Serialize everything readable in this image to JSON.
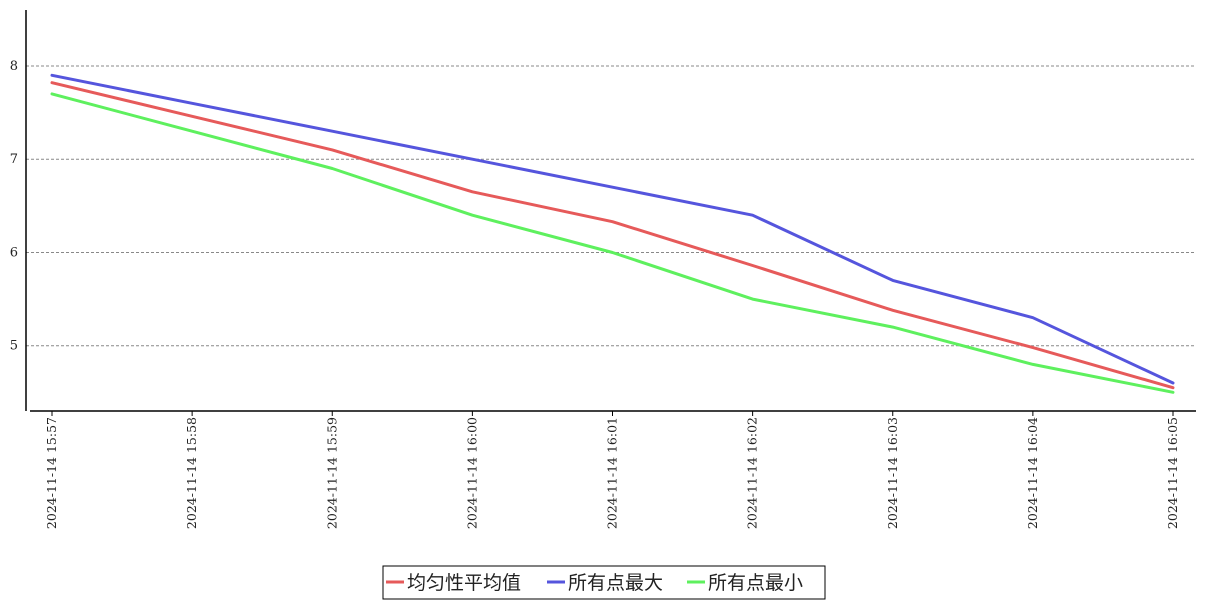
{
  "chart_data": {
    "type": "line",
    "title": "",
    "xlabel": "",
    "ylabel": "",
    "categories": [
      "2024-11-14 15:57",
      "2024-11-14 15:58",
      "2024-11-14 15:59",
      "2024-11-14 16:00",
      "2024-11-14 16:01",
      "2024-11-14 16:02",
      "2024-11-14 16:03",
      "2024-11-14 16:04",
      "2024-11-14 16:05"
    ],
    "ylim": [
      4.3,
      8.6
    ],
    "yticks": [
      5,
      6,
      7,
      8
    ],
    "grid": true,
    "legend": "bottom-center",
    "series": [
      {
        "name": "均匀性平均值",
        "color": "#e65a5a",
        "values": [
          7.82,
          7.46,
          7.1,
          6.65,
          6.33,
          5.86,
          5.38,
          4.98,
          4.55
        ]
      },
      {
        "name": "所有点最大",
        "color": "#5555dd",
        "values": [
          7.9,
          7.6,
          7.3,
          7.0,
          6.7,
          6.4,
          5.7,
          5.3,
          4.6
        ]
      },
      {
        "name": "所有点最小",
        "color": "#5ef05e",
        "values": [
          7.7,
          7.3,
          6.9,
          6.4,
          6.0,
          5.5,
          5.2,
          4.8,
          4.5
        ]
      }
    ]
  }
}
